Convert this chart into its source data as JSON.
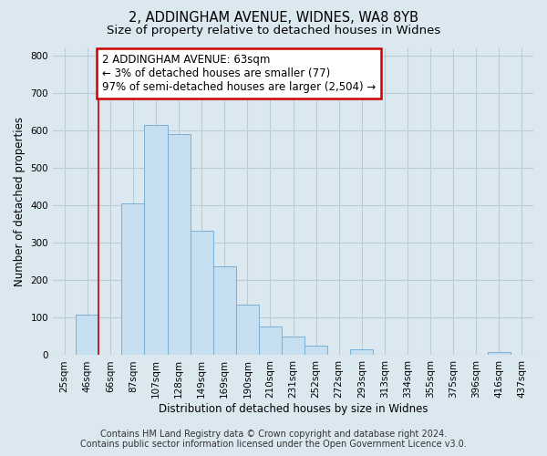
{
  "title": "2, ADDINGHAM AVENUE, WIDNES, WA8 8YB",
  "subtitle": "Size of property relative to detached houses in Widnes",
  "xlabel": "Distribution of detached houses by size in Widnes",
  "ylabel": "Number of detached properties",
  "categories": [
    "25sqm",
    "46sqm",
    "66sqm",
    "87sqm",
    "107sqm",
    "128sqm",
    "149sqm",
    "169sqm",
    "190sqm",
    "210sqm",
    "231sqm",
    "252sqm",
    "272sqm",
    "293sqm",
    "313sqm",
    "334sqm",
    "355sqm",
    "375sqm",
    "396sqm",
    "416sqm",
    "437sqm"
  ],
  "values": [
    0,
    107,
    0,
    406,
    614,
    591,
    333,
    237,
    136,
    76,
    49,
    25,
    0,
    16,
    0,
    0,
    0,
    0,
    0,
    8,
    0
  ],
  "bar_color": "#c5dff0",
  "bar_edge_color": "#7ab0d4",
  "vline_x_index": 2,
  "vline_color": "#cc0000",
  "annotation_line1": "2 ADDINGHAM AVENUE: 63sqm",
  "annotation_line2": "← 3% of detached houses are smaller (77)",
  "annotation_line3": "97% of semi-detached houses are larger (2,504) →",
  "annotation_box_color": "white",
  "annotation_box_edge_color": "#cc0000",
  "ylim": [
    0,
    820
  ],
  "yticks": [
    0,
    100,
    200,
    300,
    400,
    500,
    600,
    700,
    800
  ],
  "footer_line1": "Contains HM Land Registry data © Crown copyright and database right 2024.",
  "footer_line2": "Contains public sector information licensed under the Open Government Licence v3.0.",
  "bg_color": "#dce8f0",
  "plot_bg_color": "#dce8f0",
  "title_fontsize": 10.5,
  "subtitle_fontsize": 9.5,
  "axis_label_fontsize": 8.5,
  "tick_fontsize": 7.5,
  "annotation_fontsize": 8.5,
  "footer_fontsize": 7
}
